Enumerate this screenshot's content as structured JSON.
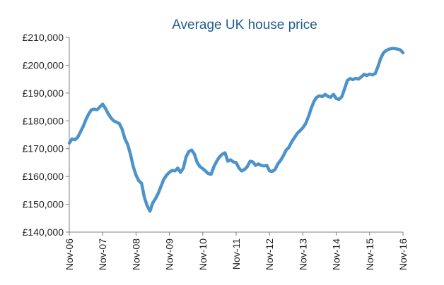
{
  "chart_data": {
    "type": "line",
    "title": "Average UK house price",
    "xlabel": "",
    "ylabel": "",
    "grid": false,
    "ylim": [
      140000,
      210000
    ],
    "xlim": [
      "2006-11",
      "2016-11"
    ],
    "yticks": [
      "£140,000",
      "£150,000",
      "£160,000",
      "£170,000",
      "£180,000",
      "£190,000",
      "£200,000",
      "£210,000"
    ],
    "ytick_values": [
      140000,
      150000,
      160000,
      170000,
      180000,
      190000,
      200000,
      210000
    ],
    "xticks": [
      "Nov-06",
      "Nov-07",
      "Nov-08",
      "Nov-09",
      "Nov-10",
      "Nov-11",
      "Nov-12",
      "Nov-13",
      "Nov-14",
      "Nov-15",
      "Nov-16"
    ],
    "xtick_values": [
      "2006-11",
      "2007-11",
      "2008-11",
      "2009-11",
      "2010-11",
      "2011-11",
      "2012-11",
      "2013-11",
      "2014-11",
      "2015-11",
      "2016-11"
    ],
    "series": [
      {
        "color": "#4d93c9",
        "points": [
          [
            "2006-11",
            172000
          ],
          [
            "2006-12",
            173500
          ],
          [
            "2007-01",
            173200
          ],
          [
            "2007-02",
            174000
          ],
          [
            "2007-03",
            176000
          ],
          [
            "2007-04",
            178000
          ],
          [
            "2007-05",
            180500
          ],
          [
            "2007-06",
            182500
          ],
          [
            "2007-07",
            184000
          ],
          [
            "2007-08",
            184200
          ],
          [
            "2007-09",
            184000
          ],
          [
            "2007-10",
            185000
          ],
          [
            "2007-11",
            186000
          ],
          [
            "2007-12",
            184500
          ],
          [
            "2008-01",
            182500
          ],
          [
            "2008-02",
            181000
          ],
          [
            "2008-03",
            180000
          ],
          [
            "2008-04",
            179500
          ],
          [
            "2008-05",
            179000
          ],
          [
            "2008-06",
            177000
          ],
          [
            "2008-07",
            173500
          ],
          [
            "2008-08",
            171500
          ],
          [
            "2008-09",
            168000
          ],
          [
            "2008-10",
            163500
          ],
          [
            "2008-11",
            160500
          ],
          [
            "2008-12",
            158500
          ],
          [
            "2009-01",
            157500
          ],
          [
            "2009-02",
            152500
          ],
          [
            "2009-03",
            149500
          ],
          [
            "2009-04",
            147500
          ],
          [
            "2009-05",
            150500
          ],
          [
            "2009-06",
            152000
          ],
          [
            "2009-07",
            154000
          ],
          [
            "2009-08",
            156500
          ],
          [
            "2009-09",
            159000
          ],
          [
            "2009-10",
            160500
          ],
          [
            "2009-11",
            161500
          ],
          [
            "2009-12",
            162200
          ],
          [
            "2010-01",
            162000
          ],
          [
            "2010-02",
            163000
          ],
          [
            "2010-03",
            161500
          ],
          [
            "2010-04",
            163000
          ],
          [
            "2010-05",
            167000
          ],
          [
            "2010-06",
            169000
          ],
          [
            "2010-07",
            169500
          ],
          [
            "2010-08",
            168000
          ],
          [
            "2010-09",
            165000
          ],
          [
            "2010-10",
            163500
          ],
          [
            "2010-11",
            162800
          ],
          [
            "2010-12",
            162000
          ],
          [
            "2011-01",
            161000
          ],
          [
            "2011-02",
            160800
          ],
          [
            "2011-03",
            163500
          ],
          [
            "2011-04",
            165500
          ],
          [
            "2011-05",
            167000
          ],
          [
            "2011-06",
            168000
          ],
          [
            "2011-07",
            168500
          ],
          [
            "2011-08",
            165500
          ],
          [
            "2011-09",
            166000
          ],
          [
            "2011-10",
            165200
          ],
          [
            "2011-11",
            165000
          ],
          [
            "2011-12",
            163000
          ],
          [
            "2012-01",
            162000
          ],
          [
            "2012-02",
            162500
          ],
          [
            "2012-03",
            163500
          ],
          [
            "2012-04",
            165500
          ],
          [
            "2012-05",
            165200
          ],
          [
            "2012-06",
            164000
          ],
          [
            "2012-07",
            164500
          ],
          [
            "2012-08",
            164000
          ],
          [
            "2012-09",
            163800
          ],
          [
            "2012-10",
            164000
          ],
          [
            "2012-11",
            162000
          ],
          [
            "2012-12",
            161800
          ],
          [
            "2013-01",
            162500
          ],
          [
            "2013-02",
            164500
          ],
          [
            "2013-03",
            165800
          ],
          [
            "2013-04",
            167500
          ],
          [
            "2013-05",
            169500
          ],
          [
            "2013-06",
            170500
          ],
          [
            "2013-07",
            172500
          ],
          [
            "2013-08",
            174000
          ],
          [
            "2013-09",
            175500
          ],
          [
            "2013-10",
            176500
          ],
          [
            "2013-11",
            177500
          ],
          [
            "2013-12",
            179000
          ],
          [
            "2014-01",
            181500
          ],
          [
            "2014-02",
            184500
          ],
          [
            "2014-03",
            187000
          ],
          [
            "2014-04",
            188500
          ],
          [
            "2014-05",
            189000
          ],
          [
            "2014-06",
            188700
          ],
          [
            "2014-07",
            189500
          ],
          [
            "2014-08",
            188800
          ],
          [
            "2014-09",
            188500
          ],
          [
            "2014-10",
            189500
          ],
          [
            "2014-11",
            188000
          ],
          [
            "2014-12",
            187700
          ],
          [
            "2015-01",
            188700
          ],
          [
            "2015-02",
            191500
          ],
          [
            "2015-03",
            194500
          ],
          [
            "2015-04",
            195200
          ],
          [
            "2015-05",
            194800
          ],
          [
            "2015-06",
            195300
          ],
          [
            "2015-07",
            195000
          ],
          [
            "2015-08",
            195800
          ],
          [
            "2015-09",
            196700
          ],
          [
            "2015-10",
            196300
          ],
          [
            "2015-11",
            196800
          ],
          [
            "2015-12",
            196500
          ],
          [
            "2016-01",
            197000
          ],
          [
            "2016-02",
            199500
          ],
          [
            "2016-03",
            202500
          ],
          [
            "2016-04",
            204500
          ],
          [
            "2016-05",
            205300
          ],
          [
            "2016-06",
            205800
          ],
          [
            "2016-07",
            206000
          ],
          [
            "2016-08",
            206000
          ],
          [
            "2016-09",
            205800
          ],
          [
            "2016-10",
            205500
          ],
          [
            "2016-11",
            204500
          ]
        ]
      }
    ]
  }
}
